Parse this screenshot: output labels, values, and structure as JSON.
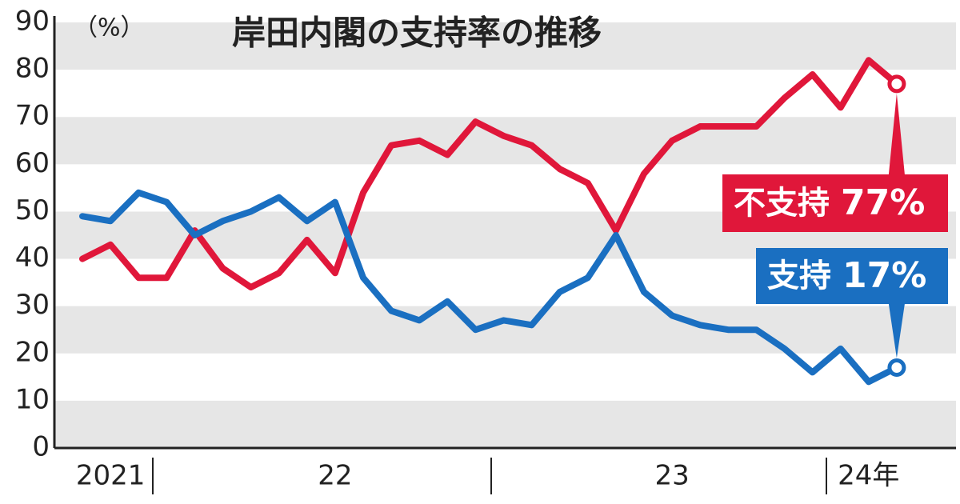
{
  "chart_data": {
    "type": "line",
    "title": "岸田内閣の支持率の推移",
    "y_unit": "（%）",
    "categories": [
      null,
      "2021",
      null,
      null,
      null,
      null,
      null,
      null,
      null,
      "22",
      null,
      null,
      null,
      null,
      null,
      null,
      null,
      null,
      null,
      null,
      null,
      "23",
      null,
      null,
      null,
      null,
      null,
      null,
      "24年",
      null
    ],
    "series": [
      {
        "name": "不支持",
        "color": "#e0173a",
        "values": [
          40,
          43,
          36,
          36,
          46,
          38,
          34,
          37,
          44,
          37,
          54,
          64,
          65,
          62,
          69,
          66,
          64,
          59,
          56,
          46,
          58,
          65,
          68,
          68,
          68,
          74,
          79,
          72,
          82,
          77
        ],
        "value_labels": [
          null,
          null,
          null,
          null,
          null,
          null,
          null,
          null,
          null,
          null,
          null,
          null,
          null,
          null,
          null,
          null,
          null,
          null,
          null,
          null,
          null,
          null,
          null,
          null,
          null,
          null,
          null,
          null,
          null,
          "77%"
        ]
      },
      {
        "name": "支持",
        "color": "#1a6fc1",
        "values": [
          49,
          48,
          54,
          52,
          45,
          48,
          50,
          53,
          48,
          52,
          36,
          29,
          27,
          31,
          25,
          27,
          26,
          33,
          36,
          45,
          33,
          28,
          26,
          25,
          25,
          21,
          16,
          21,
          14,
          17
        ],
        "value_labels": [
          null,
          null,
          null,
          null,
          null,
          null,
          null,
          null,
          null,
          null,
          null,
          null,
          null,
          null,
          null,
          null,
          null,
          null,
          null,
          null,
          null,
          null,
          null,
          null,
          null,
          null,
          null,
          null,
          null,
          "17%"
        ]
      }
    ],
    "ylim": [
      0,
      90
    ],
    "yticks": [
      0,
      10,
      20,
      30,
      40,
      50,
      60,
      70,
      80,
      90
    ],
    "grid": "bands"
  }
}
